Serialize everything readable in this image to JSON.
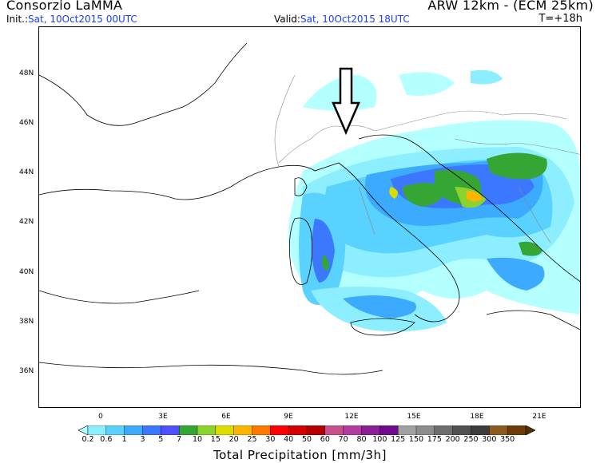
{
  "header": {
    "org": "Consorzio LaMMA",
    "model": "ARW 12km - (ECM 25km)",
    "init_label": "Init.:",
    "init_value": "Sat, 10Oct2015 00UTC",
    "valid_label": "Valid:",
    "valid_value": "Sat, 10Oct2015 18UTC",
    "forecast_step": "T=+18h"
  },
  "map": {
    "lat_labels": [
      "48N",
      "46N",
      "44N",
      "42N",
      "40N",
      "38N",
      "36N"
    ],
    "lon_labels": [
      "0",
      "3E",
      "6E",
      "9E",
      "12E",
      "15E",
      "18E",
      "21E"
    ],
    "arrow_annotation": "down-arrow-icon"
  },
  "colorbar": {
    "title": "Total Precipitation [mm/3h]",
    "labels": [
      "0.2",
      "0.6",
      "1",
      "3",
      "5",
      "7",
      "10",
      "15",
      "20",
      "25",
      "30",
      "40",
      "50",
      "60",
      "70",
      "80",
      "100",
      "125",
      "150",
      "175",
      "200",
      "250",
      "300",
      "350"
    ],
    "colors": [
      "#b4ffff",
      "#8ceeff",
      "#5ad2ff",
      "#3caaff",
      "#3c78ff",
      "#5050ff",
      "#35a533",
      "#8cd22d",
      "#dcdc00",
      "#ffb400",
      "#ff7800",
      "#ff0000",
      "#d20000",
      "#b40000",
      "#c8508c",
      "#b43ca0",
      "#8c1e96",
      "#6e0a8c",
      "#a0a0a0",
      "#8c8c8c",
      "#6e6e6e",
      "#505050",
      "#3c3c3c",
      "#8c5a1e",
      "#6e3c0a",
      "#503200"
    ]
  }
}
